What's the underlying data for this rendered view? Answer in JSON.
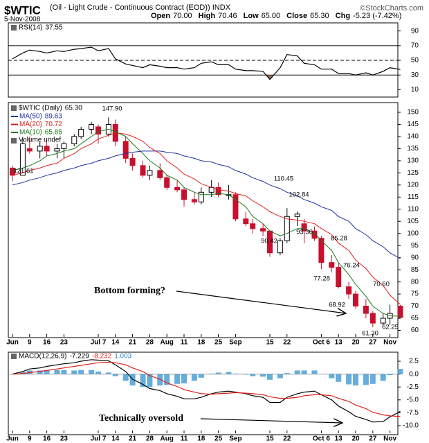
{
  "header": {
    "symbol": "$WTIC",
    "description": "(Oil - Light Crude - Continuous Contract (EOD)) INDX",
    "copyright": "©StockCharts.com",
    "date": "5-Nov-2008",
    "quote": [
      {
        "label": "Open",
        "value": "70.00"
      },
      {
        "label": "High",
        "value": "70.46"
      },
      {
        "label": "Low",
        "value": "65.00"
      },
      {
        "label": "Close",
        "value": "65.30"
      },
      {
        "label": "Chg",
        "value": "-5.23 (-7.42%)"
      }
    ]
  },
  "chart_data": [
    {
      "type": "line",
      "ylim": [
        0,
        101
      ],
      "yticks": [
        10,
        30,
        50,
        70,
        90
      ],
      "hlines": [
        {
          "value": 70,
          "style": "solid"
        },
        {
          "value": 50,
          "style": "dashed"
        },
        {
          "value": 30,
          "style": "solid"
        }
      ],
      "series": [
        {
          "name": "RSI(14)",
          "color": "#000000",
          "values": [
            52,
            60,
            64,
            62,
            60,
            63,
            62,
            65,
            66,
            68,
            63,
            66,
            52,
            45,
            43,
            40,
            44,
            42,
            40,
            40,
            38,
            40,
            46,
            48,
            44,
            44,
            38,
            36,
            36,
            35,
            24,
            40,
            58,
            56,
            46,
            44,
            38,
            38,
            32,
            32,
            30,
            33,
            30,
            35,
            40,
            37.55
          ]
        }
      ],
      "fill_color": "#9b6b5e"
    },
    {
      "type": "candlestick",
      "ylim": [
        57,
        154
      ],
      "yticks": [
        60,
        65,
        70,
        75,
        80,
        85,
        90,
        95,
        100,
        105,
        110,
        115,
        120,
        125,
        130,
        135,
        140,
        145,
        150
      ],
      "categories": [
        "Jun",
        null,
        "9",
        null,
        "16",
        null,
        "23",
        null,
        null,
        null,
        "Jul 7",
        null,
        "14",
        null,
        "21",
        null,
        "28",
        null,
        "Aug",
        null,
        "11",
        null,
        "18",
        null,
        "25",
        null,
        "Sep",
        null,
        null,
        null,
        "15",
        null,
        "22",
        null,
        null,
        null,
        "Oct 6",
        null,
        "13",
        null,
        "20",
        null,
        "27",
        null,
        "Nov",
        null
      ],
      "ohlc": {
        "name": "$WTIC (Daily)",
        "value_label": "65.30",
        "up_color": "#ffffff",
        "down_color": "#c8102e",
        "open": [
          127,
          124,
          135,
          134,
          136,
          134,
          135,
          137,
          140,
          143,
          144,
          141,
          145,
          138,
          131,
          128,
          124,
          126,
          123,
          119,
          118,
          114,
          113,
          117,
          119,
          116,
          116,
          106,
          104,
          102,
          101,
          92,
          97,
          107,
          104,
          101,
          98,
          88,
          86,
          78,
          75,
          70,
          67,
          63,
          65,
          70
        ],
        "high": [
          128,
          139,
          140,
          138,
          139,
          137,
          138,
          141,
          144,
          146,
          145,
          147.9,
          147,
          140,
          133,
          130,
          128,
          129,
          124,
          122,
          119,
          117,
          119,
          122,
          121,
          120,
          117,
          109,
          106,
          104,
          101,
          98,
          110.45,
          109,
          106,
          102.84,
          99,
          91,
          88,
          80,
          76.24,
          73,
          68,
          67,
          70.6,
          70.46
        ],
        "low": [
          121.61,
          124,
          133,
          131,
          132,
          131,
          131,
          136,
          139,
          141,
          137,
          140,
          136,
          129,
          126,
          123,
          122,
          122,
          118,
          117,
          111,
          112,
          112,
          115,
          115,
          114,
          105,
          103,
          100,
          99,
          90.42,
          91,
          96,
          103,
          96,
          97,
          85.28,
          84,
          77.28,
          73,
          68.92,
          65,
          61.3,
          62,
          62.25,
          65
        ],
        "close": [
          124,
          137,
          134,
          136,
          134,
          135,
          137,
          140,
          143,
          145,
          141,
          145,
          138,
          131,
          128,
          124,
          126,
          123,
          119,
          118,
          114,
          113,
          117,
          119,
          116,
          116,
          106,
          104,
          102,
          101,
          92,
          97,
          107,
          108,
          101,
          98,
          88,
          86,
          78,
          75,
          70,
          67,
          63,
          65,
          67,
          65.3
        ]
      },
      "series": [
        {
          "name": "MA(50)",
          "color": "#1f2f9f",
          "values": [
            120,
            121,
            122,
            123,
            124,
            125,
            126,
            127,
            128,
            129,
            130,
            131,
            132,
            133,
            133.5,
            134,
            134,
            134,
            133.5,
            133,
            132,
            131,
            130,
            129.5,
            128.5,
            127.5,
            126,
            124.5,
            123,
            121.5,
            120,
            118.5,
            117,
            115.5,
            114,
            112.5,
            111,
            109.5,
            107,
            105,
            102,
            99.5,
            97,
            94.5,
            92,
            89.63
          ]
        },
        {
          "name": "MA(20)",
          "color": "#e0201a",
          "values": [
            124,
            125,
            126,
            127,
            128,
            129,
            131,
            133,
            135,
            137,
            139,
            140.5,
            141.5,
            141,
            140,
            138,
            135.5,
            133,
            130,
            127,
            124.5,
            122.5,
            120.5,
            119,
            118,
            117.5,
            116.5,
            115.5,
            113.5,
            111,
            109,
            107,
            106,
            105.5,
            105,
            104,
            102,
            99.5,
            96,
            93,
            89,
            85.5,
            82,
            78.5,
            74.5,
            70.72
          ]
        },
        {
          "name": "MA(10)",
          "color": "#1a7a1a",
          "values": [
            126,
            127,
            128,
            130,
            132,
            133,
            134,
            135,
            137,
            140,
            142,
            143,
            142,
            140,
            137,
            133,
            130,
            127,
            124,
            122,
            119,
            117,
            116,
            116,
            116.5,
            116,
            114,
            111,
            107,
            104,
            101,
            99,
            100,
            102,
            102,
            100,
            97,
            93,
            88,
            83,
            79,
            74,
            70,
            67,
            66,
            65.85
          ]
        }
      ],
      "volume_legend": "Volume undef",
      "annotations": [
        "121.61",
        "147.90",
        "110.45",
        "102.84",
        "90.42",
        "93.36",
        "85.28",
        "77.28",
        "76.24",
        "68.92",
        "61.30",
        "70.60",
        "62.25",
        "Bottom forming?"
      ]
    },
    {
      "type": "line",
      "ylim": [
        -11.75,
        4.25
      ],
      "y2ticks": [
        2.5,
        {
          "value": 0,
          "label": "0.0"
        },
        -2.5,
        {
          "value": -5,
          "label": "-5.0"
        },
        -7.5,
        {
          "value": -10,
          "label": "-10.0"
        }
      ],
      "categories": [
        "Jun",
        null,
        "9",
        null,
        "16",
        null,
        "23",
        null,
        null,
        null,
        "Jul 7",
        null,
        "14",
        null,
        "21",
        null,
        "28",
        null,
        "Aug",
        null,
        "11",
        null,
        "18",
        null,
        "25",
        null,
        "Sep",
        null,
        null,
        null,
        "15",
        null,
        "22",
        null,
        null,
        null,
        "Oct 6",
        null,
        "13",
        null,
        "20",
        null,
        "27",
        null,
        "Nov",
        null
      ],
      "series": [
        {
          "name": "MACD(12,26,9)",
          "color": "#000000",
          "values": [
            0,
            0.5,
            1,
            1.2,
            1.5,
            1.8,
            2,
            2.2,
            2.5,
            2.8,
            2.7,
            2.6,
            1.8,
            0.5,
            -1,
            -2,
            -2.8,
            -3.2,
            -3.8,
            -4.3,
            -4.8,
            -4.8,
            -4.5,
            -3.8,
            -3.5,
            -3.3,
            -3.5,
            -3.8,
            -4.2,
            -4.5,
            -5.5,
            -5.5,
            -4.5,
            -3.8,
            -3.5,
            -3.3,
            -4,
            -5,
            -6.2,
            -7.3,
            -8.2,
            -8.8,
            -9.3,
            -9.2,
            -8.3,
            -7.229
          ]
        },
        {
          "color": "#e0201a",
          "values": [
            0,
            0.1,
            0.3,
            0.5,
            0.7,
            1,
            1.2,
            1.5,
            1.7,
            2,
            2.2,
            2.3,
            2.2,
            1.8,
            1.2,
            0.5,
            -0.3,
            -1,
            -1.7,
            -2.4,
            -3,
            -3.5,
            -3.8,
            -3.9,
            -3.8,
            -3.7,
            -3.6,
            -3.7,
            -3.8,
            -4,
            -4.4,
            -4.7,
            -4.7,
            -4.5,
            -4.2,
            -4,
            -4,
            -4.2,
            -4.7,
            -5.3,
            -6,
            -6.7,
            -7.4,
            -7.9,
            -8.1,
            -8.232
          ]
        },
        {
          "type": "bar",
          "color": "#4a9fd5",
          "values": [
            0,
            0.4,
            0.7,
            0.7,
            0.8,
            0.8,
            0.8,
            0.7,
            0.8,
            0.8,
            0.5,
            0.3,
            -0.4,
            -1.3,
            -2.2,
            -2.5,
            -2.5,
            -2.2,
            -2.1,
            -1.9,
            -1.8,
            -1.3,
            -0.7,
            0.1,
            0.3,
            0.4,
            0.1,
            -0.1,
            -0.4,
            -0.5,
            -1.1,
            -0.8,
            0.2,
            0.7,
            0.7,
            0.7,
            0,
            -0.8,
            -1.5,
            -2,
            -2.2,
            -2.1,
            -1.9,
            -1.3,
            -0.2,
            1.003
          ]
        }
      ],
      "annotations": [
        "Technically oversold"
      ]
    }
  ]
}
